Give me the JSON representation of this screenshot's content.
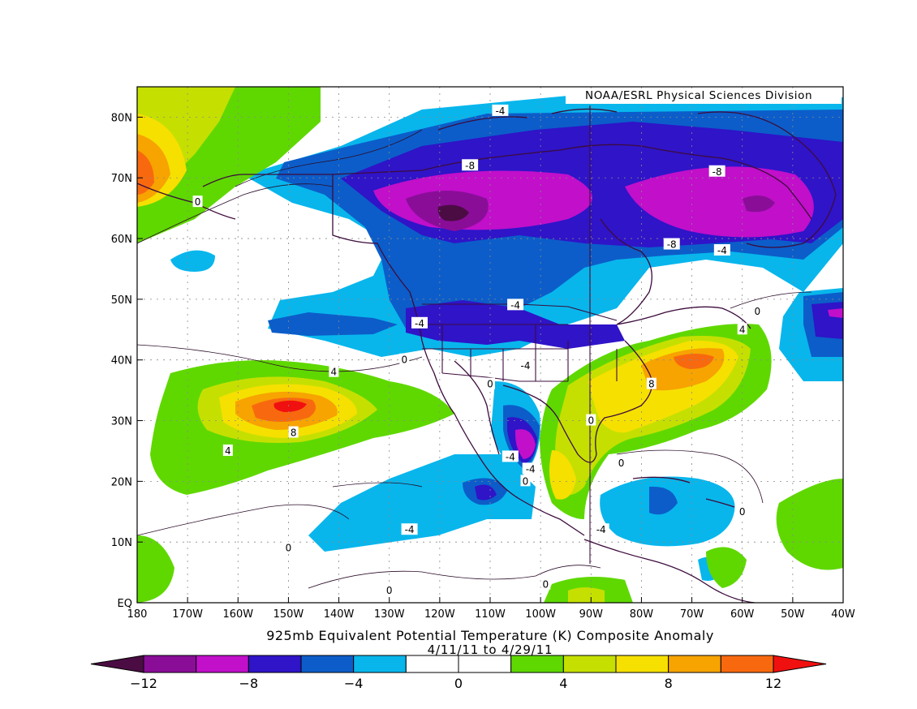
{
  "credit": "NOAA/ESRL Physical Sciences Division",
  "title": "925mb Equivalent Potential Temperature (K) Composite Anomaly",
  "subtitle": "4/11/11  to 4/29/11",
  "map": {
    "lon_range": [
      -180,
      -40
    ],
    "lat_range": [
      0,
      85
    ],
    "x_ticks": [
      {
        "lon": -180,
        "label": "180"
      },
      {
        "lon": -170,
        "label": "170W"
      },
      {
        "lon": -160,
        "label": "160W"
      },
      {
        "lon": -150,
        "label": "150W"
      },
      {
        "lon": -140,
        "label": "140W"
      },
      {
        "lon": -130,
        "label": "130W"
      },
      {
        "lon": -120,
        "label": "120W"
      },
      {
        "lon": -110,
        "label": "110W"
      },
      {
        "lon": -100,
        "label": "100W"
      },
      {
        "lon": -90,
        "label": "90W"
      },
      {
        "lon": -80,
        "label": "80W"
      },
      {
        "lon": -70,
        "label": "70W"
      },
      {
        "lon": -60,
        "label": "60W"
      },
      {
        "lon": -50,
        "label": "50W"
      },
      {
        "lon": -40,
        "label": "40W"
      }
    ],
    "y_ticks": [
      {
        "lat": 0,
        "label": "EQ"
      },
      {
        "lat": 10,
        "label": "10N"
      },
      {
        "lat": 20,
        "label": "20N"
      },
      {
        "lat": 30,
        "label": "30N"
      },
      {
        "lat": 40,
        "label": "40N"
      },
      {
        "lat": 50,
        "label": "50N"
      },
      {
        "lat": 60,
        "label": "60N"
      },
      {
        "lat": 70,
        "label": "70N"
      },
      {
        "lat": 80,
        "label": "80N"
      }
    ],
    "grid": true,
    "contour_labels": [
      {
        "lon": -108,
        "lat": 81,
        "text": "-4"
      },
      {
        "lon": -114,
        "lat": 72,
        "text": "-8"
      },
      {
        "lon": -65,
        "lat": 71,
        "text": "-8"
      },
      {
        "lon": -74,
        "lat": 59,
        "text": "-8"
      },
      {
        "lon": -64,
        "lat": 58,
        "text": "-4"
      },
      {
        "lon": -105,
        "lat": 49,
        "text": "-4"
      },
      {
        "lon": -124,
        "lat": 46,
        "text": "-4"
      },
      {
        "lon": -103,
        "lat": 39,
        "text": "-4"
      },
      {
        "lon": -57,
        "lat": 48,
        "text": "0"
      },
      {
        "lon": -60,
        "lat": 45,
        "text": "4"
      },
      {
        "lon": -127,
        "lat": 40,
        "text": "0"
      },
      {
        "lon": -141,
        "lat": 38,
        "text": "4"
      },
      {
        "lon": -149,
        "lat": 28,
        "text": "8"
      },
      {
        "lon": -162,
        "lat": 25,
        "text": "4"
      },
      {
        "lon": -110,
        "lat": 36,
        "text": "0"
      },
      {
        "lon": -78,
        "lat": 36,
        "text": "8"
      },
      {
        "lon": -106,
        "lat": 24,
        "text": "-4"
      },
      {
        "lon": -102,
        "lat": 22,
        "text": "-4"
      },
      {
        "lon": -103,
        "lat": 20,
        "text": "0"
      },
      {
        "lon": -90,
        "lat": 30,
        "text": "0"
      },
      {
        "lon": -84,
        "lat": 23,
        "text": "0"
      },
      {
        "lon": -60,
        "lat": 15,
        "text": "0"
      },
      {
        "lon": -88,
        "lat": 12,
        "text": "-4"
      },
      {
        "lon": -126,
        "lat": 12,
        "text": "-4"
      },
      {
        "lon": -168,
        "lat": 66,
        "text": "0"
      },
      {
        "lon": -150,
        "lat": 9,
        "text": "0"
      },
      {
        "lon": -130,
        "lat": 2,
        "text": "0"
      },
      {
        "lon": -99,
        "lat": 3,
        "text": "0"
      }
    ]
  },
  "colorbar": {
    "colors": [
      "#4b0c44",
      "#8a0d98",
      "#c10fca",
      "#2f14c8",
      "#0c5dc9",
      "#08b6ec",
      "#ffffff",
      "#ffffff",
      "#5fd800",
      "#c5e000",
      "#f6e000",
      "#f7a300",
      "#f8690f",
      "#f11010"
    ],
    "labels": [
      {
        "value": -12,
        "text": "−12"
      },
      {
        "value": -8,
        "text": "−8"
      },
      {
        "value": -4,
        "text": "−4"
      },
      {
        "value": 0,
        "text": "0"
      },
      {
        "value": 4,
        "text": "4"
      },
      {
        "value": 8,
        "text": "8"
      },
      {
        "value": 12,
        "text": "12"
      }
    ]
  }
}
